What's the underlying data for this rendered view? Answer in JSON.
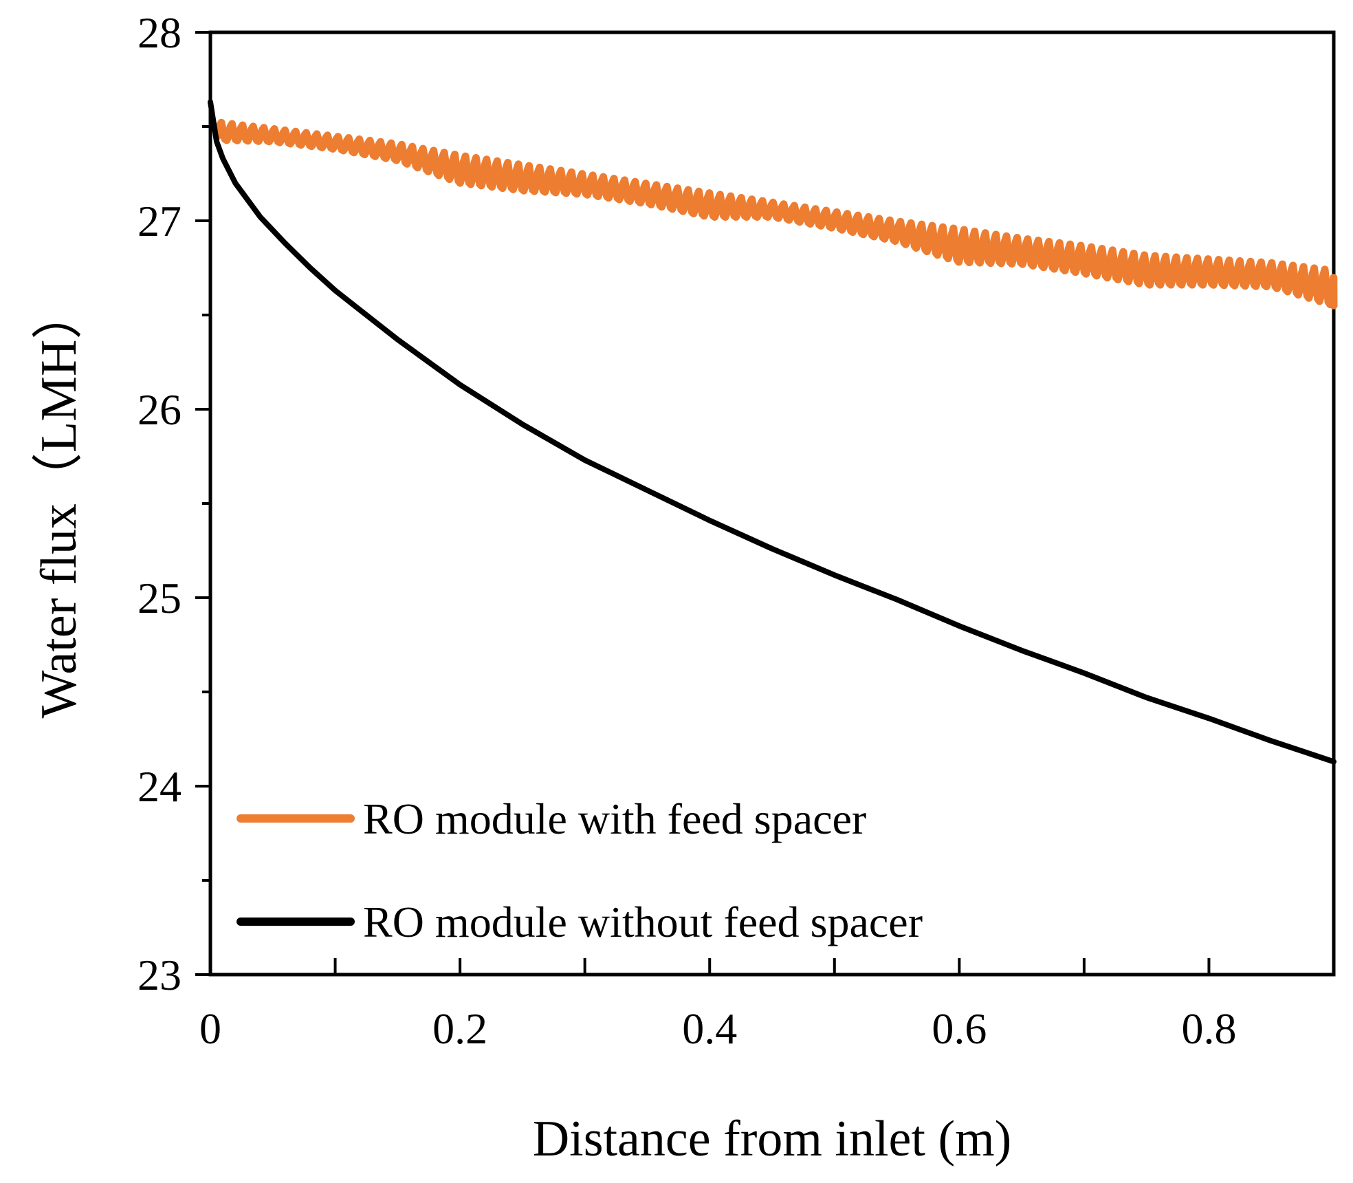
{
  "chart_data": {
    "type": "line",
    "xlabel": "Distance from inlet (m)",
    "ylabel": "Water flux（LMH）",
    "xlim": [
      0,
      0.9
    ],
    "ylim": [
      23,
      28
    ],
    "x_ticks": [
      "0",
      "0.2",
      "0.4",
      "0.6",
      "0.8"
    ],
    "x_tick_values": [
      0,
      0.2,
      0.4,
      0.6,
      0.8
    ],
    "x_minor_tick_values": [
      0.1,
      0.3,
      0.5,
      0.7,
      0.9
    ],
    "y_ticks": [
      "23",
      "24",
      "25",
      "26",
      "27",
      "28"
    ],
    "y_tick_values": [
      23,
      24,
      25,
      26,
      27,
      28
    ],
    "y_minor_tick_values": [
      23.5,
      24.5,
      25.5,
      26.5,
      27.5
    ],
    "grid": false,
    "legend_position": "bottom-left",
    "series": [
      {
        "name": "RO module with feed spacer",
        "color": "#ED7D31",
        "oscillating": true,
        "x": [
          0,
          0.05,
          0.1,
          0.15,
          0.2,
          0.25,
          0.3,
          0.35,
          0.4,
          0.45,
          0.5,
          0.55,
          0.6,
          0.65,
          0.7,
          0.75,
          0.8,
          0.85,
          0.9
        ],
        "upper": [
          27.53,
          27.49,
          27.45,
          27.41,
          27.35,
          27.3,
          27.25,
          27.2,
          27.15,
          27.1,
          27.05,
          27.0,
          26.96,
          26.91,
          26.87,
          26.82,
          26.8,
          26.78,
          26.74
        ],
        "lower": [
          27.43,
          27.42,
          27.38,
          27.32,
          27.2,
          27.16,
          27.14,
          27.09,
          27.02,
          27.02,
          26.96,
          26.89,
          26.78,
          26.77,
          26.72,
          26.66,
          26.66,
          26.65,
          26.55
        ]
      },
      {
        "name": "RO module without feed spacer",
        "color": "#000000",
        "x": [
          0,
          0.005,
          0.01,
          0.02,
          0.04,
          0.06,
          0.08,
          0.1,
          0.15,
          0.2,
          0.25,
          0.3,
          0.35,
          0.4,
          0.45,
          0.5,
          0.55,
          0.6,
          0.65,
          0.7,
          0.75,
          0.8,
          0.85,
          0.9
        ],
        "y": [
          27.63,
          27.42,
          27.33,
          27.2,
          27.02,
          26.88,
          26.75,
          26.63,
          26.37,
          26.13,
          25.92,
          25.73,
          25.57,
          25.41,
          25.26,
          25.12,
          24.99,
          24.85,
          24.72,
          24.6,
          24.47,
          24.36,
          24.24,
          24.13
        ]
      }
    ]
  }
}
